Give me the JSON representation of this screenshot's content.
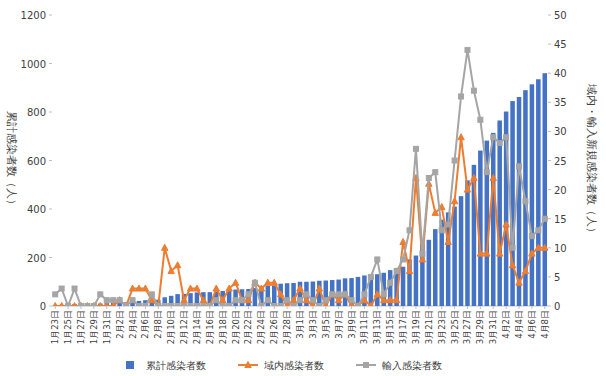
{
  "chart_data": {
    "type": "bar",
    "categories": [
      "1月23日",
      null,
      "1月25日",
      null,
      "1月27日",
      null,
      "1月29日",
      null,
      "1月31日",
      null,
      "2月2日",
      null,
      "2月4日",
      null,
      "2月6日",
      null,
      "2月8日",
      null,
      "2月10日",
      null,
      "2月12日",
      null,
      "2月14日",
      null,
      "2月16日",
      null,
      "2月18日",
      null,
      "2月20日",
      null,
      "2月22日",
      null,
      "2月24日",
      null,
      "2月26日",
      null,
      "2月28日",
      null,
      "3月1日",
      null,
      "3月3日",
      null,
      "3月5日",
      null,
      "3月7日",
      null,
      "3月9日",
      null,
      "3月11日",
      null,
      "3月13日",
      null,
      "3月15日",
      null,
      "3月17日",
      null,
      "3月19日",
      null,
      "3月21日",
      null,
      "3月23日",
      null,
      "3月25日",
      null,
      "3月27日",
      null,
      "3月29日",
      null,
      "3月31日",
      null,
      "4月2日",
      null,
      "4月4日",
      null,
      "4月6日",
      null,
      "4月8日"
    ],
    "series": [
      {
        "name": "累計感染者数",
        "type": "bar",
        "color": "#4472c4",
        "values": [
          2,
          5,
          5,
          8,
          8,
          8,
          10,
          10,
          12,
          13,
          15,
          15,
          17,
          21,
          24,
          25,
          26,
          36,
          42,
          49,
          50,
          53,
          56,
          57,
          57,
          60,
          62,
          65,
          68,
          69,
          70,
          74,
          81,
          84,
          85,
          92,
          94,
          95,
          100,
          100,
          101,
          104,
          105,
          107,
          109,
          114,
          115,
          120,
          126,
          129,
          131,
          137,
          148,
          157,
          162,
          192,
          208,
          256,
          273,
          317,
          356,
          386,
          410,
          453,
          518,
          582,
          641,
          682,
          714,
          765,
          802,
          845,
          862,
          890,
          914,
          935,
          960
        ]
      },
      {
        "name": "域内感染者数",
        "type": "line",
        "axis": "y2",
        "color": "#ed7d31",
        "marker": "triangle",
        "values": [
          0,
          0,
          0,
          0,
          0,
          0,
          0,
          0,
          0,
          0,
          1,
          0,
          3,
          3,
          3,
          1,
          0,
          10,
          6,
          7,
          1,
          3,
          3,
          1,
          0,
          3,
          1,
          3,
          4,
          1,
          1,
          4,
          3,
          4,
          4,
          2,
          0,
          1,
          3,
          1,
          0,
          3,
          0,
          2,
          1,
          2,
          0,
          0,
          1,
          0,
          2,
          1,
          1,
          1,
          11,
          6,
          22,
          8,
          21,
          16,
          17,
          11,
          18,
          29,
          20,
          22,
          9,
          9,
          22,
          9,
          14,
          7,
          4,
          6,
          9,
          10,
          10
        ]
      },
      {
        "name": "輸入感染者数",
        "type": "line",
        "axis": "y2",
        "color": "#a5a5a5",
        "marker": "square",
        "values": [
          2,
          3,
          0,
          3,
          0,
          0,
          0,
          2,
          1,
          1,
          1,
          0,
          1,
          0,
          0,
          2,
          0,
          0,
          0,
          0,
          0,
          0,
          0,
          0,
          0,
          1,
          0,
          0,
          1,
          1,
          2,
          4,
          0,
          1,
          0,
          0,
          1,
          0,
          1,
          2,
          1,
          0,
          1,
          2,
          2,
          2,
          1,
          0,
          2,
          5,
          8,
          2,
          4,
          6,
          8,
          13,
          27,
          9,
          22,
          23,
          13,
          14,
          25,
          36,
          44,
          37,
          32,
          23,
          29,
          28,
          29,
          10,
          24,
          18,
          12,
          13,
          15
        ]
      }
    ],
    "y_label": "累計感染者数（人）",
    "y2_label": "域内・輸入新規感染者数（人）",
    "ylim": [
      0,
      1200
    ],
    "yticks": [
      0,
      200,
      400,
      600,
      800,
      1000,
      1200
    ],
    "y2lim": [
      0,
      50
    ],
    "y2ticks": [
      0,
      5,
      10,
      15,
      20,
      25,
      30,
      35,
      40,
      45,
      50
    ],
    "grid": false,
    "legend": "bottom"
  }
}
